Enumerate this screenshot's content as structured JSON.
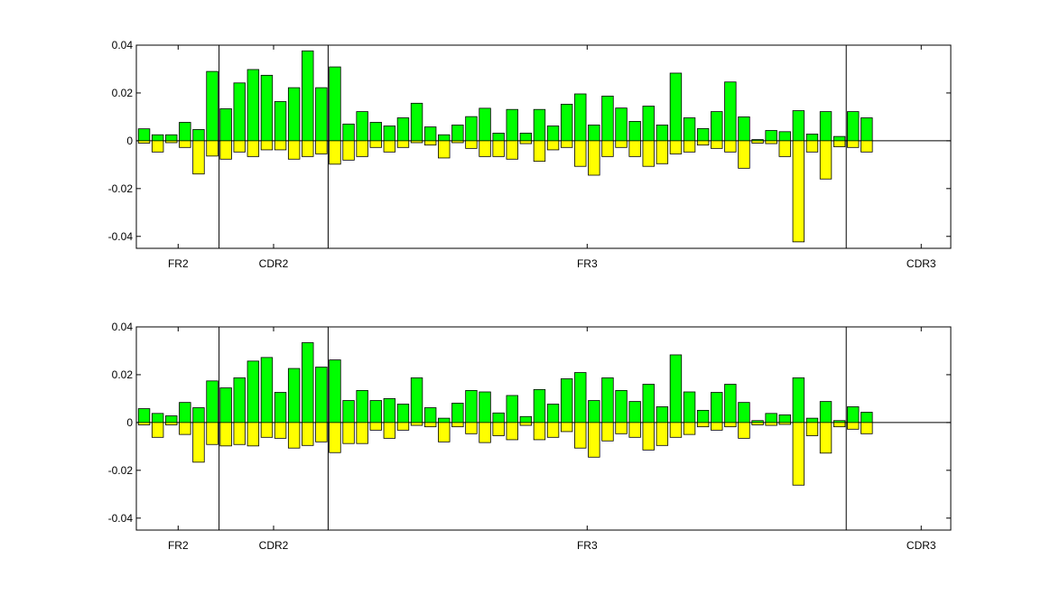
{
  "chart_data": [
    {
      "type": "bar",
      "ylim": [
        -0.045,
        0.04
      ],
      "yticks": [
        {
          "value": 0.04,
          "label": "0.04"
        },
        {
          "value": 0.02,
          "label": "0.02"
        },
        {
          "value": 0,
          "label": "0"
        },
        {
          "value": -0.02,
          "label": "-0.02"
        },
        {
          "value": -0.04,
          "label": "-0.04"
        }
      ],
      "region_boundaries": [
        6,
        14,
        52
      ],
      "region_labels": [
        {
          "label": "FR2",
          "at": 3
        },
        {
          "label": "CDR2",
          "at": 10
        },
        {
          "label": "FR3",
          "at": 33
        },
        {
          "label": "CDR3",
          "at": 57.5
        }
      ],
      "series": [
        {
          "color": "#00ff00",
          "values": [
            0.005,
            0.0025,
            0.0025,
            0.0077,
            0.0047,
            0.029,
            0.0134,
            0.0242,
            0.0298,
            0.0274,
            0.0164,
            0.0222,
            0.0376,
            0.0222,
            0.0309,
            0.007,
            0.0122,
            0.0077,
            0.0062,
            0.0096,
            0.0157,
            0.0058,
            0.0025,
            0.0066,
            0.0101,
            0.0136,
            0.0032,
            0.0131,
            0.0032,
            0.0131,
            0.0062,
            0.0153,
            0.0196,
            0.0066,
            0.0187,
            0.0137,
            0.0081,
            0.0145,
            0.0066,
            0.0283,
            0.0096,
            0.0051,
            0.0122,
            0.0246,
            0.01,
            0.0005,
            0.0043,
            0.0038,
            0.0126,
            0.0028,
            0.0122,
            0.0018,
            0.0122,
            0.0096
          ]
        },
        {
          "color": "#ffff00",
          "values": [
            -0.001,
            -0.0047,
            -0.0008,
            -0.0028,
            -0.0139,
            -0.0064,
            -0.0077,
            -0.0047,
            -0.0066,
            -0.0038,
            -0.0038,
            -0.0077,
            -0.0066,
            -0.0055,
            -0.0098,
            -0.0081,
            -0.0066,
            -0.0028,
            -0.0047,
            -0.0028,
            -0.0008,
            -0.0018,
            -0.0072,
            -0.0008,
            -0.0032,
            -0.0066,
            -0.0066,
            -0.0077,
            -0.0012,
            -0.0086,
            -0.0038,
            -0.0028,
            -0.0107,
            -0.0144,
            -0.0066,
            -0.0028,
            -0.0066,
            -0.0107,
            -0.0096,
            -0.0055,
            -0.0047,
            -0.0018,
            -0.0032,
            -0.0047,
            -0.0115,
            -0.001,
            -0.0012,
            -0.0066,
            -0.0423,
            -0.0047,
            -0.016,
            -0.0025,
            -0.0028,
            -0.0047
          ]
        }
      ]
    },
    {
      "type": "bar",
      "ylim": [
        -0.045,
        0.04
      ],
      "yticks": [
        {
          "value": 0.04,
          "label": "0.04"
        },
        {
          "value": 0.02,
          "label": "0.02"
        },
        {
          "value": 0,
          "label": "0"
        },
        {
          "value": -0.02,
          "label": "-0.02"
        },
        {
          "value": -0.04,
          "label": "-0.04"
        }
      ],
      "region_boundaries": [
        6,
        14,
        52
      ],
      "region_labels": [
        {
          "label": "FR2",
          "at": 3
        },
        {
          "label": "CDR2",
          "at": 10
        },
        {
          "label": "FR3",
          "at": 33
        },
        {
          "label": "CDR3",
          "at": 57.5
        }
      ],
      "series": [
        {
          "color": "#00ff00",
          "values": [
            0.0058,
            0.0038,
            0.0028,
            0.0084,
            0.0062,
            0.0174,
            0.0145,
            0.0187,
            0.0257,
            0.0272,
            0.0126,
            0.0226,
            0.0334,
            0.0232,
            0.0262,
            0.0092,
            0.0134,
            0.0092,
            0.01,
            0.0077,
            0.0187,
            0.0062,
            0.0018,
            0.0081,
            0.0134,
            0.0128,
            0.004,
            0.0113,
            0.0025,
            0.0138,
            0.0077,
            0.0183,
            0.0209,
            0.0092,
            0.0187,
            0.0134,
            0.0088,
            0.016,
            0.0066,
            0.0283,
            0.0128,
            0.0051,
            0.0126,
            0.016,
            0.0084,
            0.0008,
            0.0038,
            0.0032,
            0.0187,
            0.0018,
            0.0088,
            0.0008,
            0.0066,
            0.0043
          ]
        },
        {
          "color": "#ffff00",
          "values": [
            -0.001,
            -0.0062,
            -0.001,
            -0.005,
            -0.0166,
            -0.0092,
            -0.0098,
            -0.0092,
            -0.0098,
            -0.0062,
            -0.0066,
            -0.0107,
            -0.0096,
            -0.0081,
            -0.0126,
            -0.0088,
            -0.0088,
            -0.0032,
            -0.0066,
            -0.0032,
            -0.0012,
            -0.0018,
            -0.0081,
            -0.0018,
            -0.0047,
            -0.0084,
            -0.0055,
            -0.0072,
            -0.0012,
            -0.0072,
            -0.0062,
            -0.0038,
            -0.0107,
            -0.0145,
            -0.0077,
            -0.0047,
            -0.0062,
            -0.0115,
            -0.0096,
            -0.0062,
            -0.005,
            -0.0018,
            -0.0032,
            -0.0018,
            -0.0066,
            -0.001,
            -0.0012,
            -0.0008,
            -0.0262,
            -0.0055,
            -0.0128,
            -0.0018,
            -0.0028,
            -0.0047
          ]
        }
      ]
    }
  ]
}
